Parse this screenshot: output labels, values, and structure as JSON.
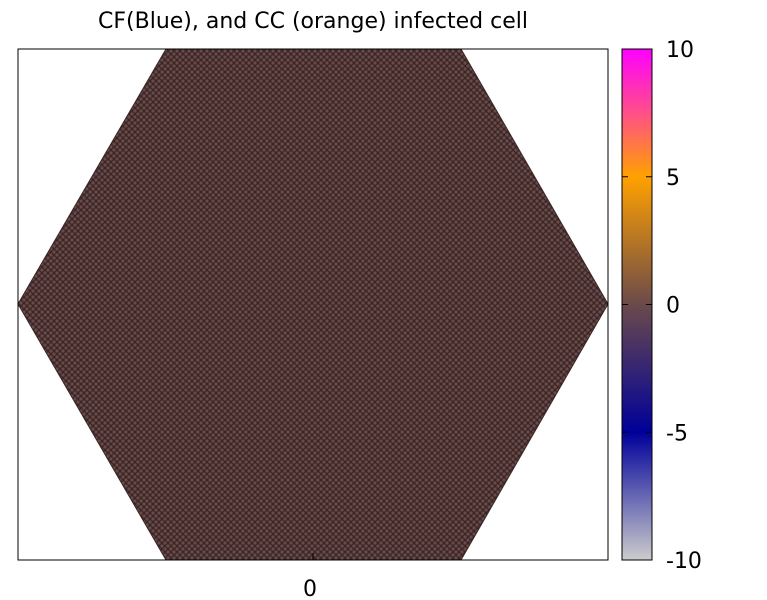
{
  "chart_data": {
    "type": "heatmap",
    "title": "CF(Blue), and CC (orange) infected cell",
    "xlabel": "",
    "ylabel": "",
    "x_ticks": [
      "0"
    ],
    "cell_value": 0,
    "colorbar": {
      "range": [
        -10,
        10
      ],
      "ticks": [
        10,
        5,
        0,
        -5,
        -10
      ],
      "tick_labels": [
        "10",
        "5",
        "0",
        "-5",
        "-10"
      ],
      "colors": [
        {
          "value": -10,
          "color": "#cccccc"
        },
        {
          "value": -5,
          "color": "#00009a"
        },
        {
          "value": 0,
          "color": "#6b4a4a"
        },
        {
          "value": 5,
          "color": "#ffa100"
        },
        {
          "value": 7.5,
          "color": "#ff4f88"
        },
        {
          "value": 10,
          "color": "#ff00ff"
        }
      ]
    },
    "cell_color": "#6b4a4a",
    "cell_edge_color": "#3a2626"
  }
}
